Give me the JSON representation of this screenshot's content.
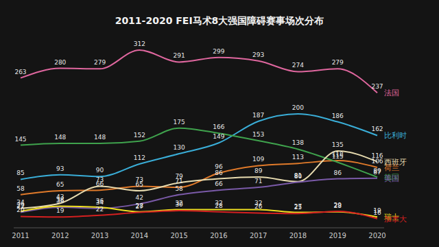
{
  "chart_data": {
    "type": "line",
    "title": "2011-2020  FEI马术8大强国障碍赛事场次分布",
    "categories": [
      "2011",
      "2012",
      "2013",
      "2014",
      "2015",
      "2016",
      "2017",
      "2018",
      "2019",
      "2020"
    ],
    "series": [
      {
        "name": "法国",
        "color": "#e0679f",
        "values": [
          263,
          280,
          279,
          312,
          291,
          299,
          293,
          274,
          279,
          237
        ]
      },
      {
        "name": "比利时",
        "color": "#3aaed8",
        "values": [
          85,
          93,
          90,
          112,
          130,
          149,
          187,
          200,
          186,
          162
        ]
      },
      {
        "name": "荷兰",
        "color": "#e07a2a",
        "values": [
          58,
          65,
          66,
          73,
          71,
          96,
          109,
          113,
          118,
          106
        ]
      },
      {
        "name": "德国",
        "color": "#3fa34d",
        "values": [
          145,
          148,
          148,
          152,
          175,
          166,
          153,
          138,
          115,
          89
        ]
      },
      {
        "name": "西班牙",
        "color": "#e8dcb0",
        "values": [
          34,
          43,
          73,
          65,
          79,
          86,
          89,
          81,
          135,
          116
        ]
      },
      {
        "name": "美国",
        "color": "#7a5aa8",
        "values": [
          27,
          36,
          34,
          42,
          58,
          66,
          71,
          80,
          86,
          87
        ]
      },
      {
        "name": "瑞士",
        "color": "#f0e020",
        "values": [
          29,
          38,
          36,
          28,
          32,
          32,
          32,
          27,
          28,
          19
        ]
      },
      {
        "name": "加拿大",
        "color": "#d42020",
        "values": [
          20,
          19,
          22,
          27,
          30,
          28,
          26,
          25,
          29,
          16
        ]
      }
    ],
    "ylim": [
      0,
      330
    ],
    "data_labels": true,
    "tick_labels": "x",
    "grid": false
  }
}
